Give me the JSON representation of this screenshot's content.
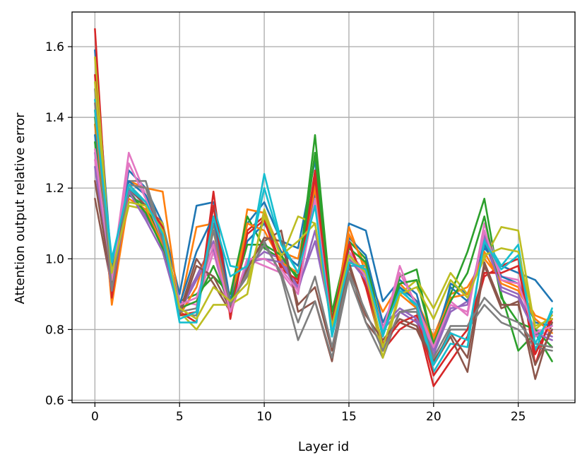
{
  "chart_data": {
    "type": "line",
    "xlabel": "Layer id",
    "ylabel": "Attention output relative error",
    "xlim": [
      -1.35,
      28.35
    ],
    "ylim": [
      0.593,
      1.698
    ],
    "xticks": [
      0,
      5,
      10,
      15,
      20,
      25
    ],
    "yticks": [
      0.6,
      0.8,
      1.0,
      1.2,
      1.4,
      1.6
    ],
    "ytick_labels": [
      "0.6",
      "0.8",
      "1.0",
      "1.2",
      "1.4",
      "1.6"
    ],
    "grid": true,
    "legend": "none",
    "x": [
      0,
      1,
      2,
      3,
      4,
      5,
      6,
      7,
      8,
      9,
      10,
      11,
      12,
      13,
      14,
      15,
      16,
      17,
      18,
      19,
      20,
      21,
      22,
      23,
      24,
      25,
      26,
      27
    ],
    "series": [
      {
        "color": "#1f77b4",
        "values": [
          1.59,
          0.97,
          1.25,
          1.2,
          1.1,
          0.9,
          1.15,
          1.16,
          0.88,
          1.1,
          1.16,
          1.05,
          1.03,
          1.28,
          0.78,
          1.1,
          1.08,
          0.88,
          0.94,
          0.9,
          0.72,
          0.93,
          0.9,
          1.03,
          0.98,
          0.96,
          0.94,
          0.88
        ]
      },
      {
        "color": "#ff7f0e",
        "values": [
          1.38,
          0.88,
          1.22,
          1.2,
          1.19,
          0.86,
          1.09,
          1.1,
          0.85,
          1.14,
          1.13,
          1.02,
          1.0,
          1.22,
          0.8,
          1.09,
          0.96,
          0.85,
          0.93,
          0.88,
          0.78,
          0.9,
          0.92,
          1.0,
          0.94,
          0.92,
          0.84,
          0.82
        ]
      },
      {
        "color": "#2ca02c",
        "values": [
          1.4,
          0.95,
          1.18,
          1.15,
          1.05,
          0.88,
          0.9,
          0.95,
          0.9,
          1.12,
          1.03,
          1.0,
          0.95,
          1.35,
          0.85,
          1.05,
          1.0,
          0.78,
          0.95,
          0.97,
          0.75,
          0.9,
          1.02,
          1.17,
          0.9,
          0.74,
          0.79,
          0.71
        ]
      },
      {
        "color": "#d62728",
        "values": [
          1.65,
          0.9,
          1.2,
          1.15,
          1.1,
          0.85,
          0.82,
          1.19,
          0.83,
          1.08,
          1.12,
          0.98,
          0.93,
          1.25,
          0.82,
          1.05,
          0.92,
          0.74,
          0.8,
          0.83,
          0.64,
          0.71,
          0.78,
          0.95,
          0.98,
          1.0,
          0.7,
          0.85
        ]
      },
      {
        "color": "#9467bd",
        "values": [
          1.3,
          0.92,
          1.2,
          1.12,
          1.04,
          0.86,
          0.95,
          1.05,
          0.86,
          0.98,
          1.02,
          1.0,
          0.92,
          1.05,
          0.82,
          1.02,
          0.95,
          0.8,
          0.85,
          0.82,
          0.73,
          0.85,
          0.88,
          1.05,
          0.92,
          0.9,
          0.8,
          0.78
        ]
      },
      {
        "color": "#8c564b",
        "values": [
          1.17,
          0.92,
          1.2,
          1.15,
          1.08,
          0.85,
          1.0,
          0.93,
          0.85,
          0.98,
          1.05,
          1.08,
          0.85,
          0.88,
          0.71,
          0.98,
          0.82,
          0.76,
          0.82,
          0.8,
          0.7,
          0.78,
          0.68,
          0.98,
          0.86,
          0.88,
          0.66,
          0.82
        ]
      },
      {
        "color": "#e377c2",
        "values": [
          1.28,
          0.95,
          1.3,
          1.18,
          1.06,
          0.88,
          0.87,
          1.02,
          0.84,
          1.0,
          0.98,
          0.96,
          0.9,
          1.2,
          0.79,
          1.02,
          0.96,
          0.79,
          0.98,
          0.86,
          0.74,
          0.88,
          0.84,
          1.1,
          0.95,
          0.94,
          0.78,
          0.8
        ]
      },
      {
        "color": "#7f7f7f",
        "values": [
          1.48,
          0.9,
          1.22,
          1.22,
          1.06,
          0.84,
          0.84,
          1.1,
          0.88,
          0.95,
          1.05,
          0.95,
          0.77,
          0.88,
          0.72,
          0.95,
          0.82,
          0.72,
          0.85,
          0.85,
          0.7,
          0.8,
          0.8,
          0.87,
          0.82,
          0.8,
          0.75,
          0.74
        ]
      },
      {
        "color": "#bcbd22",
        "values": [
          1.57,
          0.95,
          1.15,
          1.14,
          1.1,
          0.85,
          0.8,
          0.87,
          0.87,
          0.9,
          1.14,
          1.0,
          1.12,
          1.1,
          0.8,
          1.0,
          0.95,
          0.72,
          0.9,
          0.94,
          0.86,
          0.96,
          0.9,
          1.0,
          1.09,
          1.08,
          0.8,
          0.84
        ]
      },
      {
        "color": "#17becf",
        "values": [
          1.45,
          1.0,
          1.2,
          1.16,
          1.08,
          0.82,
          0.82,
          1.15,
          0.98,
          0.97,
          1.24,
          1.05,
          0.96,
          1.17,
          0.78,
          0.98,
          0.98,
          0.78,
          0.92,
          0.86,
          0.68,
          0.76,
          0.75,
          1.06,
          0.98,
          1.04,
          0.74,
          0.86
        ]
      },
      {
        "color": "#1f77b4",
        "values": [
          1.35,
          0.96,
          1.22,
          1.18,
          1.07,
          0.87,
          1.02,
          1.12,
          0.87,
          1.05,
          1.1,
          1.02,
          0.98,
          1.18,
          0.8,
          1.06,
          1.01,
          0.82,
          0.92,
          0.88,
          0.76,
          0.92,
          0.88,
          1.04,
          0.95,
          0.93,
          0.82,
          0.81
        ]
      },
      {
        "color": "#ff7f0e",
        "values": [
          1.42,
          0.87,
          1.17,
          1.14,
          1.04,
          0.84,
          0.92,
          1.08,
          0.84,
          1.1,
          1.08,
          0.99,
          0.96,
          1.2,
          0.81,
          1.07,
          0.98,
          0.8,
          0.9,
          0.86,
          0.77,
          0.89,
          0.9,
          1.02,
          0.93,
          0.91,
          0.83,
          0.79
        ]
      },
      {
        "color": "#2ca02c",
        "values": [
          1.33,
          0.93,
          1.19,
          1.13,
          1.03,
          0.86,
          0.88,
          0.98,
          0.87,
          1.04,
          1.04,
          1.01,
          0.94,
          1.3,
          0.83,
          1.03,
          0.99,
          0.79,
          0.93,
          0.94,
          0.76,
          0.88,
          0.96,
          1.12,
          0.89,
          0.82,
          0.8,
          0.75
        ]
      },
      {
        "color": "#d62728",
        "values": [
          1.52,
          0.89,
          1.21,
          1.16,
          1.09,
          0.84,
          0.85,
          1.15,
          0.84,
          1.07,
          1.11,
          0.97,
          0.94,
          1.23,
          0.82,
          1.04,
          0.93,
          0.76,
          0.82,
          0.84,
          0.67,
          0.74,
          0.8,
          0.96,
          0.96,
          0.98,
          0.73,
          0.83
        ]
      },
      {
        "color": "#9467bd",
        "values": [
          1.26,
          0.91,
          1.19,
          1.11,
          1.02,
          0.85,
          0.94,
          1.03,
          0.85,
          0.99,
          1.0,
          0.99,
          0.91,
          1.08,
          0.81,
          1.0,
          0.94,
          0.81,
          0.86,
          0.83,
          0.74,
          0.86,
          0.87,
          1.07,
          0.91,
          0.89,
          0.79,
          0.77
        ]
      },
      {
        "color": "#8c564b",
        "values": [
          1.22,
          0.93,
          1.21,
          1.16,
          1.06,
          0.84,
          0.98,
          0.95,
          0.86,
          0.97,
          1.06,
          1.05,
          0.87,
          0.92,
          0.74,
          0.99,
          0.84,
          0.77,
          0.83,
          0.81,
          0.71,
          0.79,
          0.72,
          0.99,
          0.87,
          0.87,
          0.7,
          0.8
        ]
      },
      {
        "color": "#e377c2",
        "values": [
          1.31,
          0.94,
          1.27,
          1.17,
          1.05,
          0.87,
          0.89,
          1.04,
          0.85,
          1.0,
          1.0,
          0.97,
          0.91,
          1.17,
          0.8,
          1.01,
          0.95,
          0.8,
          0.96,
          0.87,
          0.75,
          0.87,
          0.85,
          1.08,
          0.94,
          0.93,
          0.79,
          0.81
        ]
      },
      {
        "color": "#7f7f7f",
        "values": [
          1.44,
          0.91,
          1.21,
          1.2,
          1.05,
          0.85,
          0.86,
          1.08,
          0.87,
          0.96,
          1.04,
          0.96,
          0.82,
          0.95,
          0.75,
          0.96,
          0.85,
          0.74,
          0.85,
          0.86,
          0.72,
          0.81,
          0.81,
          0.89,
          0.84,
          0.82,
          0.76,
          0.75
        ]
      },
      {
        "color": "#bcbd22",
        "values": [
          1.5,
          0.96,
          1.16,
          1.15,
          1.08,
          0.86,
          0.83,
          0.92,
          0.88,
          0.93,
          1.12,
          1.01,
          1.05,
          1.1,
          0.81,
          1.01,
          0.96,
          0.75,
          0.9,
          0.92,
          0.83,
          0.94,
          0.89,
          1.01,
          1.03,
          1.02,
          0.81,
          0.83
        ]
      },
      {
        "color": "#17becf",
        "values": [
          1.42,
          0.99,
          1.21,
          1.16,
          1.07,
          0.83,
          0.85,
          1.12,
          0.95,
          0.98,
          1.2,
          1.04,
          0.96,
          1.15,
          0.79,
          0.99,
          0.97,
          0.79,
          0.91,
          0.87,
          0.7,
          0.79,
          0.77,
          1.05,
          0.97,
          1.01,
          0.76,
          0.85
        ]
      }
    ]
  }
}
